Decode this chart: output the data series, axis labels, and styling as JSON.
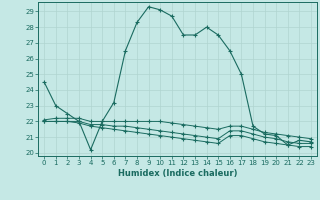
{
  "xlabel": "Humidex (Indice chaleur)",
  "background_color": "#c5e8e5",
  "grid_color": "#b0d5d0",
  "line_color": "#1a6b60",
  "xlim": [
    -0.5,
    23.5
  ],
  "ylim": [
    19.8,
    29.6
  ],
  "yticks": [
    20,
    21,
    22,
    23,
    24,
    25,
    26,
    27,
    28,
    29
  ],
  "xticks": [
    0,
    1,
    2,
    3,
    4,
    5,
    6,
    7,
    8,
    9,
    10,
    11,
    12,
    13,
    14,
    15,
    16,
    17,
    18,
    19,
    20,
    21,
    22,
    23
  ],
  "series1_x": [
    0,
    1,
    2,
    3,
    4,
    5,
    6,
    7,
    8,
    9,
    10,
    11,
    12,
    13,
    14,
    15,
    16,
    17,
    18,
    19,
    20,
    21,
    22,
    23
  ],
  "series1_y": [
    24.5,
    23.0,
    22.5,
    22.0,
    20.2,
    22.0,
    23.2,
    26.5,
    28.3,
    29.3,
    29.1,
    28.7,
    27.5,
    27.5,
    28.0,
    27.5,
    26.5,
    25.0,
    21.7,
    21.2,
    21.1,
    20.5,
    20.8,
    20.7
  ],
  "series2_x": [
    0,
    1,
    2,
    3,
    4,
    5,
    6,
    7,
    8,
    9,
    10,
    11,
    12,
    13,
    14,
    15,
    16,
    17,
    18,
    19,
    20,
    21,
    22,
    23
  ],
  "series2_y": [
    22.1,
    22.2,
    22.2,
    22.2,
    22.0,
    22.0,
    22.0,
    22.0,
    22.0,
    22.0,
    22.0,
    21.9,
    21.8,
    21.7,
    21.6,
    21.5,
    21.7,
    21.7,
    21.5,
    21.3,
    21.2,
    21.1,
    21.0,
    20.9
  ],
  "series3_x": [
    0,
    1,
    2,
    3,
    4,
    5,
    6,
    7,
    8,
    9,
    10,
    11,
    12,
    13,
    14,
    15,
    16,
    17,
    18,
    19,
    20,
    21,
    22,
    23
  ],
  "series3_y": [
    22.0,
    22.0,
    22.0,
    22.0,
    21.8,
    21.8,
    21.7,
    21.7,
    21.6,
    21.5,
    21.4,
    21.3,
    21.2,
    21.1,
    21.0,
    20.9,
    21.4,
    21.4,
    21.2,
    21.0,
    20.9,
    20.7,
    20.6,
    20.6
  ],
  "series4_x": [
    0,
    1,
    2,
    3,
    4,
    5,
    6,
    7,
    8,
    9,
    10,
    11,
    12,
    13,
    14,
    15,
    16,
    17,
    18,
    19,
    20,
    21,
    22,
    23
  ],
  "series4_y": [
    22.0,
    22.0,
    22.0,
    21.9,
    21.7,
    21.6,
    21.5,
    21.4,
    21.3,
    21.2,
    21.1,
    21.0,
    20.9,
    20.8,
    20.7,
    20.6,
    21.1,
    21.1,
    20.9,
    20.7,
    20.6,
    20.5,
    20.4,
    20.4
  ]
}
